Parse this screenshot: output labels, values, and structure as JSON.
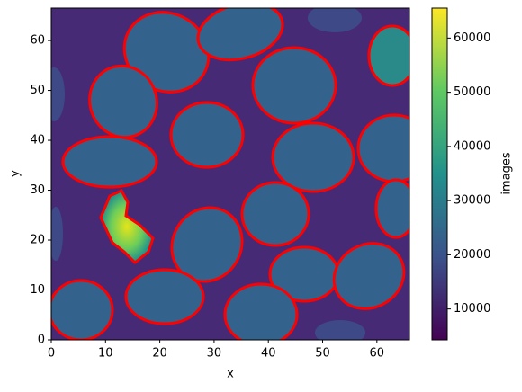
{
  "chart_data": {
    "type": "image",
    "xlabel": "x",
    "ylabel": "y",
    "colorbar_label": "images",
    "xlim": [
      0,
      66
    ],
    "ylim": [
      0,
      66.5
    ],
    "xticks": [
      0,
      10,
      20,
      30,
      40,
      50,
      60
    ],
    "yticks": [
      0,
      10,
      20,
      30,
      40,
      50,
      60
    ],
    "clim": [
      4300,
      65535
    ],
    "cticks": [
      10000,
      20000,
      30000,
      40000,
      50000,
      60000
    ],
    "colormap": "viridis",
    "contour_color": "#ff0000"
  }
}
